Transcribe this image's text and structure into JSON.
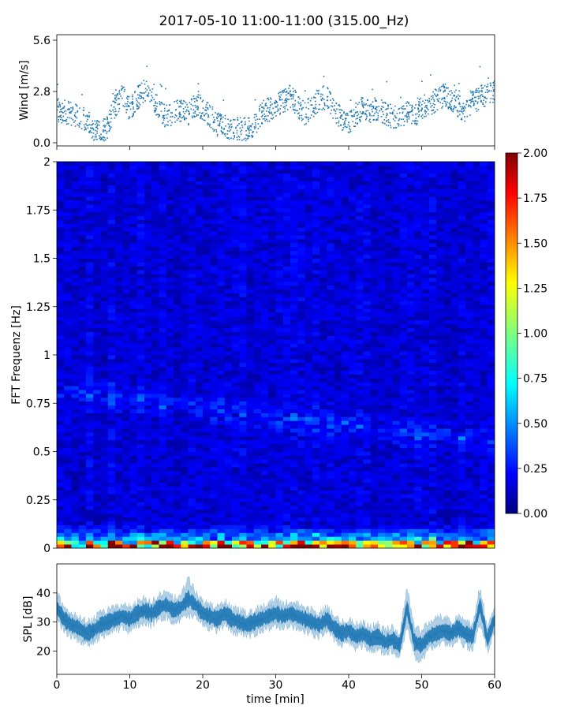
{
  "title": "2017-05-10 11:00-11:00 (315.00_Hz)",
  "chart_data": [
    {
      "type": "scatter",
      "ylabel": "Wind [m/s]",
      "xlim": [
        0,
        60
      ],
      "ylim": [
        0,
        5.6
      ],
      "y_ticks": [
        "0.0",
        "2.8",
        "5.6"
      ],
      "color": "#1f77b4",
      "series": [
        {
          "x": [
            0,
            2,
            4,
            5,
            6,
            7,
            8,
            9,
            10,
            11,
            12,
            13,
            14,
            15,
            16,
            17,
            18,
            19,
            20,
            21,
            22,
            23,
            24,
            25,
            26,
            27,
            28,
            29,
            30,
            31,
            32,
            33,
            34,
            35,
            36,
            37,
            38,
            39,
            40,
            41,
            42,
            43,
            44,
            45,
            46,
            47,
            48,
            49,
            50,
            51,
            52,
            53,
            54,
            55,
            56,
            57,
            58,
            59,
            60
          ],
          "y": [
            1.8,
            1.6,
            1.3,
            0.7,
            0.5,
            0.9,
            2.0,
            2.6,
            1.8,
            2.4,
            2.8,
            2.6,
            1.9,
            1.4,
            1.6,
            1.8,
            1.5,
            2.1,
            1.9,
            1.5,
            1.0,
            0.9,
            0.6,
            0.8,
            0.7,
            0.9,
            1.6,
            1.8,
            2.0,
            2.2,
            2.6,
            2.0,
            1.6,
            2.0,
            2.4,
            2.5,
            1.9,
            1.3,
            1.1,
            1.6,
            1.9,
            1.7,
            1.9,
            1.6,
            1.4,
            1.5,
            1.6,
            1.4,
            1.9,
            2.1,
            2.3,
            2.6,
            2.4,
            2.0,
            1.8,
            2.2,
            2.5,
            2.7,
            2.8
          ]
        }
      ]
    },
    {
      "type": "heatmap",
      "ylabel": "FFT Frequenz [Hz]",
      "xlim": [
        0,
        60
      ],
      "ylim": [
        0,
        2
      ],
      "y_ticks": [
        "0",
        "0.25",
        "0.5",
        "0.75",
        "1",
        "1.25",
        "1.5",
        "1.75",
        "2"
      ],
      "colorbar": {
        "range": [
          0,
          2
        ],
        "ticks": [
          "0.00",
          "0.25",
          "0.50",
          "0.75",
          "1.00",
          "1.25",
          "1.50",
          "1.75",
          "2.00"
        ],
        "colormap": "jet"
      }
    },
    {
      "type": "area",
      "ylabel": "SPL [dB]",
      "xlabel": "time [min]",
      "xlim": [
        0,
        60
      ],
      "ylim": [
        12,
        50
      ],
      "y_ticks": [
        "20",
        "30",
        "40"
      ],
      "x_ticks": [
        "0",
        "10",
        "20",
        "30",
        "40",
        "50",
        "60"
      ],
      "color": "#1f77b4",
      "series": [
        {
          "x": [
            0,
            1,
            2,
            3,
            4,
            5,
            6,
            7,
            8,
            9,
            10,
            11,
            12,
            13,
            14,
            15,
            16,
            17,
            18,
            19,
            20,
            21,
            22,
            23,
            24,
            25,
            26,
            27,
            28,
            29,
            30,
            31,
            32,
            33,
            34,
            35,
            36,
            37,
            38,
            39,
            40,
            41,
            42,
            43,
            44,
            45,
            46,
            47,
            48,
            49,
            50,
            51,
            52,
            53,
            54,
            55,
            56,
            57,
            58,
            59,
            60
          ],
          "y": [
            35,
            31,
            29,
            28,
            26,
            27,
            29,
            30,
            31,
            32,
            31,
            33,
            34,
            33,
            35,
            36,
            34,
            35,
            38,
            36,
            33,
            32,
            31,
            33,
            31,
            30,
            29,
            30,
            31,
            32,
            33,
            32,
            33,
            32,
            31,
            30,
            29,
            31,
            28,
            26,
            27,
            25,
            26,
            24,
            25,
            23,
            24,
            22,
            35,
            23,
            22,
            25,
            26,
            27,
            26,
            28,
            26,
            25,
            36,
            24,
            31
          ],
          "upper": [
            40,
            35,
            33,
            32,
            30,
            31,
            33,
            34,
            35,
            36,
            35,
            37,
            38,
            37,
            39,
            40,
            38,
            39,
            45,
            40,
            37,
            36,
            35,
            37,
            35,
            34,
            33,
            34,
            35,
            36,
            38,
            36,
            37,
            36,
            35,
            34,
            33,
            35,
            32,
            30,
            31,
            29,
            30,
            28,
            29,
            27,
            28,
            26,
            42,
            28,
            27,
            30,
            31,
            32,
            30,
            32,
            30,
            29,
            42,
            28,
            35
          ],
          "lower": [
            31,
            27,
            25,
            24,
            22,
            23,
            25,
            26,
            27,
            28,
            27,
            29,
            30,
            29,
            31,
            32,
            30,
            31,
            32,
            32,
            29,
            28,
            27,
            29,
            27,
            26,
            25,
            26,
            27,
            28,
            29,
            28,
            29,
            28,
            27,
            26,
            25,
            27,
            24,
            22,
            23,
            21,
            22,
            20,
            21,
            19,
            20,
            18,
            28,
            18,
            17,
            21,
            22,
            23,
            22,
            24,
            22,
            21,
            30,
            20,
            27
          ]
        }
      ]
    }
  ]
}
